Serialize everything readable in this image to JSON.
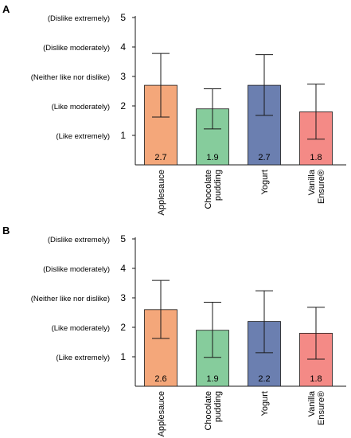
{
  "chart_data": [
    {
      "panel_label": "A",
      "type": "bar",
      "categories": [
        "Applesauce",
        "Chocolate pudding",
        "Yogurt",
        "Vanilla Ensure®"
      ],
      "category_lines": [
        [
          "Applesauce"
        ],
        [
          "Chocolate",
          "pudding"
        ],
        [
          "Yogurt"
        ],
        [
          "Vanilla",
          "Ensure®"
        ]
      ],
      "values": [
        2.7,
        1.9,
        2.7,
        1.8
      ],
      "value_labels": [
        "2.7",
        "1.9",
        "2.7",
        "1.8"
      ],
      "error_low": [
        1.62,
        1.22,
        1.68,
        0.87
      ],
      "error_high": [
        3.78,
        2.58,
        3.74,
        2.74
      ],
      "colors": [
        "#f4a77a",
        "#86cc9c",
        "#6b7fb0",
        "#f48a86"
      ],
      "ylim": [
        0,
        5
      ],
      "yticks": [
        1,
        2,
        3,
        4,
        5
      ],
      "ytick_labels": [
        "(Like extremely)",
        "(Like moderately)",
        "(Neither like nor dislike)",
        "(Dislike moderately)",
        "(Dislike extremely)"
      ],
      "grid": false
    },
    {
      "panel_label": "B",
      "type": "bar",
      "categories": [
        "Applesauce",
        "Chocolate pudding",
        "Yogurt",
        "Vanilla Ensure®"
      ],
      "category_lines": [
        [
          "Applesauce"
        ],
        [
          "Chocolate",
          "pudding"
        ],
        [
          "Yogurt"
        ],
        [
          "Vanilla",
          "Ensure®"
        ]
      ],
      "values": [
        2.6,
        1.9,
        2.2,
        1.8
      ],
      "value_labels": [
        "2.6",
        "1.9",
        "2.2",
        "1.8"
      ],
      "error_low": [
        1.62,
        0.98,
        1.14,
        0.92
      ],
      "error_high": [
        3.59,
        2.85,
        3.24,
        2.68
      ],
      "colors": [
        "#f4a77a",
        "#86cc9c",
        "#6b7fb0",
        "#f48a86"
      ],
      "ylim": [
        0,
        5
      ],
      "yticks": [
        1,
        2,
        3,
        4,
        5
      ],
      "ytick_labels": [
        "(Like extremely)",
        "(Like moderately)",
        "(Neither like nor dislike)",
        "(Dislike moderately)",
        "(Dislike extremely)"
      ],
      "grid": false
    }
  ]
}
